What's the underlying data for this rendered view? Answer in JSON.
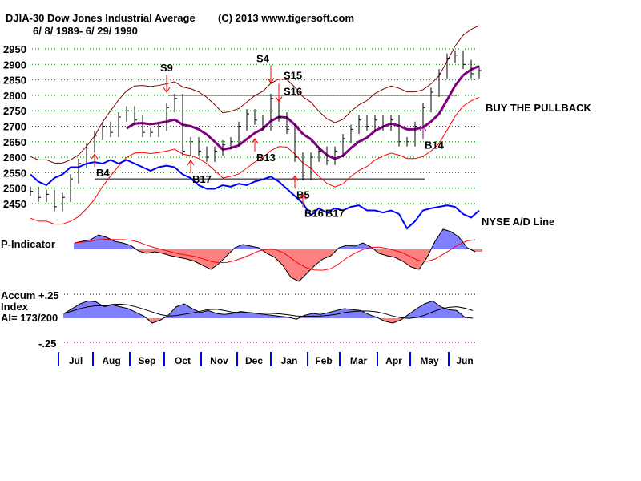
{
  "header": {
    "title": "DJIA-30  Dow Jones Industrial Average",
    "copyright": "(C) 2013 www.tigersoft.com",
    "date_range": "6/ 8/ 1989- 6/ 29/ 1990"
  },
  "chart_data": {
    "type": "line",
    "title": "DJIA-30 Dow Jones Industrial Average",
    "price_panel": {
      "yticks": [
        2950,
        2900,
        2850,
        2800,
        2750,
        2700,
        2650,
        2600,
        2550,
        2500,
        2450
      ],
      "ylim": [
        2450,
        2950
      ],
      "closes": [
        2490,
        2470,
        2480,
        2440,
        2470,
        2530,
        2580,
        2630,
        2670,
        2700,
        2680,
        2730,
        2750,
        2720,
        2680,
        2680,
        2700,
        2760,
        2790,
        2620,
        2650,
        2620,
        2600,
        2620,
        2640,
        2650,
        2700,
        2740,
        2720,
        2700,
        2790,
        2730,
        2690,
        2600,
        2540,
        2600,
        2620,
        2590,
        2620,
        2660,
        2690,
        2720,
        2700,
        2720,
        2700,
        2720,
        2650,
        2650,
        2700,
        2760,
        2810,
        2870,
        2920,
        2930,
        2900,
        2870,
        2880
      ],
      "ad_line": {
        "label": "NYSE A/D Line",
        "values": [
          75,
          65,
          60,
          70,
          75,
          85,
          85,
          90,
          92,
          90,
          95,
          90,
          95,
          90,
          85,
          80,
          85,
          87,
          85,
          75,
          70,
          60,
          55,
          55,
          60,
          58,
          62,
          60,
          65,
          68,
          72,
          65,
          55,
          45,
          35,
          18,
          28,
          22,
          28,
          25,
          30,
          32,
          25,
          25,
          22,
          25,
          20,
          0,
          10,
          25,
          28,
          30,
          32,
          30,
          20,
          15,
          25
        ]
      },
      "resistance": 2800,
      "support": 2530,
      "annotation": "BUY THE PULLBACK",
      "signals": [
        {
          "label": "S9",
          "index": 17,
          "type": "sell"
        },
        {
          "label": "S4",
          "index": 30,
          "type": "sell"
        },
        {
          "label": "S15",
          "index": 31,
          "type": "sell"
        },
        {
          "label": "S16",
          "index": 31,
          "type": "sell"
        },
        {
          "label": "B4",
          "index": 8,
          "type": "buy"
        },
        {
          "label": "B17",
          "index": 20,
          "type": "buy"
        },
        {
          "label": "B13",
          "index": 28,
          "type": "buy"
        },
        {
          "label": "B5",
          "index": 33,
          "type": "buy"
        },
        {
          "label": "B16",
          "index": 34,
          "type": "buy"
        },
        {
          "label": "B17",
          "index": 34,
          "type": "buy"
        },
        {
          "label": "B14",
          "index": 49,
          "type": "buy-purple"
        }
      ]
    },
    "p_indicator": {
      "label": "P-Indicator",
      "values": [
        8,
        10,
        12,
        18,
        15,
        10,
        8,
        5,
        -2,
        -5,
        -3,
        -5,
        -8,
        -10,
        -12,
        -15,
        -20,
        -25,
        -18,
        -8,
        2,
        6,
        4,
        2,
        -5,
        -10,
        -20,
        -35,
        -40,
        -30,
        -20,
        -12,
        -8,
        2,
        5,
        4,
        8,
        3,
        -5,
        -8,
        -10,
        -15,
        -22,
        -25,
        -10,
        10,
        25,
        22,
        15,
        2,
        -3
      ]
    },
    "accum_index": {
      "label1": "Accum",
      "label2": "Index",
      "ai": "AI= 173/200",
      "ytop": "+.25",
      "ybottom": "-.25",
      "values": [
        0.05,
        0.1,
        0.15,
        0.18,
        0.17,
        0.12,
        0.14,
        0.12,
        0.1,
        0.06,
        0.02,
        -0.05,
        -0.02,
        0.03,
        0.12,
        0.15,
        0.1,
        0.06,
        0.08,
        0.05,
        0.04,
        0.05,
        0.07,
        0.06,
        0.05,
        0.04,
        0.03,
        0.02,
        0.01,
        -0.01,
        0.03,
        0.05,
        0.04,
        0.06,
        0.08,
        0.1,
        0.09,
        0.08,
        0.04,
        0.01,
        -0.03,
        -0.05,
        -0.02,
        0.04,
        0.1,
        0.15,
        0.18,
        0.12,
        0.09,
        0.08,
        0.01,
        0
      ]
    },
    "months": [
      "Jul",
      "Aug",
      "Sep",
      "Oct",
      "Nov",
      "Dec",
      "Jan",
      "Feb",
      "Mar",
      "Apr",
      "May",
      "Jun"
    ],
    "colors": {
      "buy": "#ff0000",
      "sell": "#ff0000",
      "ad": "#0000ff",
      "ma": "#800080",
      "upper": "#800000",
      "lower": "#ff0000",
      "pos": "#0000ff",
      "neg": "#ff0000"
    }
  }
}
